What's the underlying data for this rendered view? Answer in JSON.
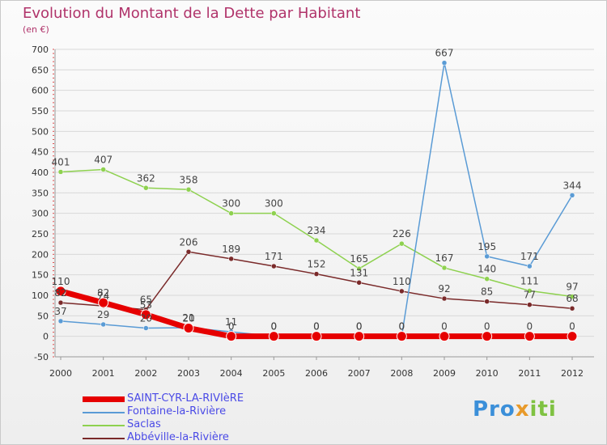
{
  "header": {
    "title": "Evolution du Montant de la Dette par Habitant",
    "subtitle": "(en €)"
  },
  "logo": {
    "text": "Proxiti"
  },
  "chart_data": {
    "type": "line",
    "title": "Evolution du Montant de la Dette par Habitant",
    "subtitle": "(en €)",
    "xlabel": "",
    "ylabel": "",
    "categories": [
      "2000",
      "2001",
      "2002",
      "2003",
      "2004",
      "2005",
      "2006",
      "2007",
      "2008",
      "2009",
      "2010",
      "2011",
      "2012"
    ],
    "ylim": [
      -50,
      700
    ],
    "yticks": [
      -50,
      0,
      50,
      100,
      150,
      200,
      250,
      300,
      350,
      400,
      450,
      500,
      550,
      600,
      650,
      700
    ],
    "grid": "horizontal",
    "legend_position": "bottom-left",
    "series": [
      {
        "name": "SAINT-CYR-LA-RIVIèRE",
        "color": "#e60000",
        "values": [
          110,
          82,
          53,
          20,
          0,
          0,
          0,
          0,
          0,
          0,
          0,
          0,
          0
        ],
        "labels": [
          "110",
          "82",
          "53",
          "20",
          "0",
          "0",
          "0",
          "0",
          "0",
          "0",
          "0",
          "0",
          "0"
        ]
      },
      {
        "name": "Fontaine-la-Rivière",
        "color": "#5a9bd5",
        "values": [
          37,
          29,
          20,
          21,
          11,
          0,
          0,
          0,
          0,
          667,
          195,
          171,
          344
        ],
        "labels": [
          "37",
          "29",
          "20",
          "21",
          "11",
          "0",
          "0",
          "0",
          "0",
          "667",
          "195",
          "171",
          "344"
        ]
      },
      {
        "name": "Saclas",
        "color": "#8ed14f",
        "values": [
          401,
          407,
          362,
          358,
          300,
          300,
          234,
          165,
          226,
          167,
          140,
          111,
          97
        ],
        "labels": [
          "401",
          "407",
          "362",
          "358",
          "300",
          "300",
          "234",
          "165",
          "226",
          "167",
          "140",
          "111",
          "97"
        ]
      },
      {
        "name": "Abbéville-la-Rivière",
        "color": "#7a2a2a",
        "values": [
          82,
          74,
          65,
          206,
          189,
          171,
          152,
          131,
          110,
          92,
          85,
          77,
          68
        ],
        "labels": [
          "82",
          "74",
          "65",
          "206",
          "189",
          "171",
          "152",
          "131",
          "110",
          "92",
          "85",
          "77",
          "68"
        ]
      }
    ]
  }
}
